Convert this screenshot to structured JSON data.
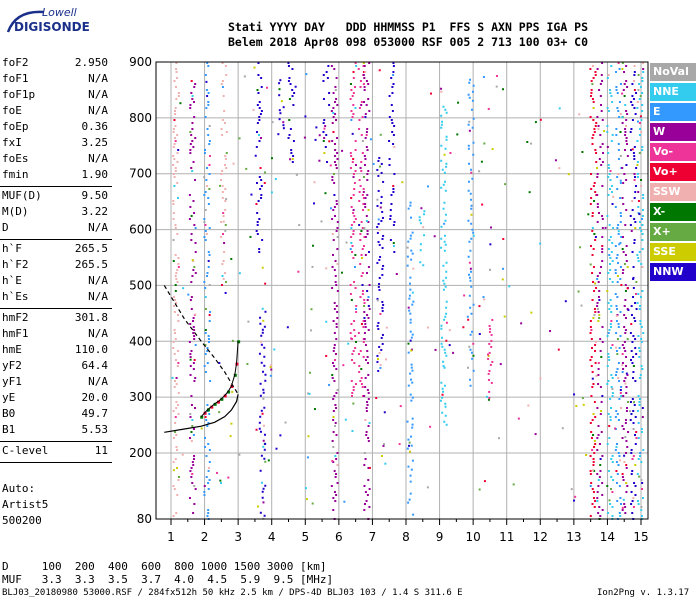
{
  "logo": {
    "line1": "Lowell",
    "line2": "DIGISONDE"
  },
  "header": {
    "line1": "Stati YYYY DAY   DDD HHMMSS P1  FFS S AXN PPS IGA PS",
    "line2": "Belem 2018 Apr08 098 053000 RSF 005 2 713 100 03+ C0"
  },
  "params_group1": [
    {
      "label": "foF2",
      "value": "2.950"
    },
    {
      "label": "foF1",
      "value": "N/A"
    },
    {
      "label": "foF1p",
      "value": "N/A"
    },
    {
      "label": "foE",
      "value": "N/A"
    },
    {
      "label": "foEp",
      "value": "0.36"
    },
    {
      "label": "fxI",
      "value": "3.25"
    },
    {
      "label": "foEs",
      "value": "N/A"
    },
    {
      "label": "fmin",
      "value": "1.90"
    }
  ],
  "params_group2": [
    {
      "label": "MUF(D)",
      "value": "9.50"
    },
    {
      "label": "M(D)",
      "value": "3.22"
    },
    {
      "label": "D",
      "value": "N/A"
    }
  ],
  "params_group3": [
    {
      "label": "h`F",
      "value": "265.5"
    },
    {
      "label": "h`F2",
      "value": "265.5"
    },
    {
      "label": "h`E",
      "value": "N/A"
    },
    {
      "label": "h`Es",
      "value": "N/A"
    }
  ],
  "params_group4": [
    {
      "label": "hmF2",
      "value": "301.8"
    },
    {
      "label": "hmF1",
      "value": "N/A"
    },
    {
      "label": "hmE",
      "value": "110.0"
    },
    {
      "label": "yF2",
      "value": "64.4"
    },
    {
      "label": "yF1",
      "value": "N/A"
    },
    {
      "label": "yE",
      "value": "20.0"
    },
    {
      "label": "B0",
      "value": "49.7"
    },
    {
      "label": "B1",
      "value": "5.53"
    }
  ],
  "params_group5": [
    {
      "label": "C-level",
      "value": "11"
    }
  ],
  "auto": {
    "line1": "Auto:",
    "line2": "Artist5",
    "line3": "500200"
  },
  "legend": [
    {
      "label": "NoVal",
      "color": "#a8a8a8"
    },
    {
      "label": "NNE",
      "color": "#33ccee"
    },
    {
      "label": "E",
      "color": "#3399ff"
    },
    {
      "label": "W",
      "color": "#990099"
    },
    {
      "label": "Vo-",
      "color": "#ee3399"
    },
    {
      "label": "Vo+",
      "color": "#ee0033"
    },
    {
      "label": "SSW",
      "color": "#f0b0b0"
    },
    {
      "label": "X-",
      "color": "#007700"
    },
    {
      "label": "X+",
      "color": "#66aa44"
    },
    {
      "label": "SSE",
      "color": "#cccc00"
    },
    {
      "label": "NNW",
      "color": "#2200cc"
    }
  ],
  "muf_table": {
    "d_row": "D     100  200  400  600  800 1000 1500 3000 [km]",
    "muf_row": "MUF   3.3  3.3  3.5  3.7  4.0  4.5  5.9  9.5 [MHz]"
  },
  "footer": {
    "left": "BLJ03_20180980 53000.RSF / 284fx512h 50 kHz 2.5 km / DPS-4D BLJ03 103 / 1.4 S 311.6 E",
    "right": "Ion2Png v. 1.3.17"
  },
  "chart_data": {
    "type": "scatter",
    "x_unit": "MHz",
    "y_unit": "km",
    "xlim": [
      0.8,
      15.05
    ],
    "ylim": [
      80,
      900
    ],
    "x_ticks": [
      1,
      2,
      3,
      4,
      5,
      6,
      7,
      8,
      9,
      10,
      11,
      12,
      13,
      14,
      15
    ],
    "y_ticks": [
      200,
      300,
      400,
      500,
      600,
      700,
      800,
      900
    ],
    "y_tick_extra": [
      80
    ],
    "grid": true,
    "trace_F2": [
      [
        1.9,
        265
      ],
      [
        2.0,
        272
      ],
      [
        2.1,
        278
      ],
      [
        2.2,
        283
      ],
      [
        2.3,
        288
      ],
      [
        2.4,
        292
      ],
      [
        2.5,
        297
      ],
      [
        2.6,
        303
      ],
      [
        2.7,
        310
      ],
      [
        2.8,
        320
      ],
      [
        2.9,
        340
      ],
      [
        2.95,
        360
      ],
      [
        3.0,
        400
      ]
    ],
    "profile_curve": [
      [
        0.8,
        237
      ],
      [
        1.4,
        243
      ],
      [
        1.9,
        248
      ],
      [
        2.3,
        255
      ],
      [
        2.6,
        265
      ],
      [
        2.8,
        277
      ],
      [
        2.95,
        292
      ],
      [
        3.0,
        305
      ]
    ],
    "profile_upper": [
      [
        0.8,
        500
      ],
      [
        1.4,
        440
      ],
      [
        1.9,
        400
      ],
      [
        2.3,
        370
      ],
      [
        2.6,
        345
      ],
      [
        2.8,
        325
      ],
      [
        2.95,
        310
      ],
      [
        3.0,
        305
      ]
    ],
    "vertical_streaks": [
      {
        "x": 1.12,
        "y": [
          80,
          900
        ],
        "color": "#f0b0b0"
      },
      {
        "x": 1.62,
        "y": [
          80,
          900
        ],
        "color": "#990099"
      },
      {
        "x": 2.05,
        "y": [
          80,
          900
        ],
        "color": "#3399ff"
      },
      {
        "x": 2.55,
        "y": [
          500,
          900
        ],
        "color": "#f0b0b0"
      },
      {
        "x": 3.6,
        "y": [
          560,
          900
        ],
        "color": "#2200cc"
      },
      {
        "x": 3.7,
        "y": [
          80,
          460
        ],
        "color": "#2200cc"
      },
      {
        "x": 4.25,
        "y": [
          770,
          880
        ],
        "color": "#2200cc"
      },
      {
        "x": 4.55,
        "y": [
          720,
          900
        ],
        "color": "#2200cc"
      },
      {
        "x": 5.6,
        "y": [
          720,
          900
        ],
        "color": "#2200cc"
      },
      {
        "x": 5.85,
        "y": [
          80,
          900
        ],
        "color": "#990099"
      },
      {
        "x": 6.4,
        "y": [
          300,
          900
        ],
        "color": "#ee3399"
      },
      {
        "x": 6.65,
        "y": [
          300,
          900
        ],
        "color": "#ee3399"
      },
      {
        "x": 6.8,
        "y": [
          80,
          900
        ],
        "color": "#990099"
      },
      {
        "x": 7.2,
        "y": [
          330,
          730
        ],
        "color": "#2200cc"
      },
      {
        "x": 7.55,
        "y": [
          560,
          900
        ],
        "color": "#2200cc"
      },
      {
        "x": 8.1,
        "y": [
          80,
          650
        ],
        "color": "#3399ff"
      },
      {
        "x": 8.45,
        "y": [
          530,
          640
        ],
        "color": "#33ccee"
      },
      {
        "x": 9.1,
        "y": [
          250,
          870
        ],
        "color": "#33ccee"
      },
      {
        "x": 9.9,
        "y": [
          320,
          870
        ],
        "color": "#3399ff"
      },
      {
        "x": 10.5,
        "y": [
          300,
          440
        ],
        "color": "#ee3399"
      },
      {
        "x": 13.55,
        "y": [
          80,
          900
        ],
        "color": "#ee0033"
      },
      {
        "x": 13.75,
        "y": [
          80,
          900
        ],
        "color": "#990099"
      },
      {
        "x": 14.05,
        "y": [
          80,
          900
        ],
        "color": "#33ccee"
      },
      {
        "x": 14.3,
        "y": [
          80,
          900
        ],
        "color": "#3399ff"
      },
      {
        "x": 14.5,
        "y": [
          80,
          900
        ],
        "color": "#990099"
      },
      {
        "x": 14.75,
        "y": [
          80,
          900
        ],
        "color": "#2200cc"
      },
      {
        "x": 14.95,
        "y": [
          80,
          900
        ],
        "color": "#33ccee"
      }
    ]
  }
}
